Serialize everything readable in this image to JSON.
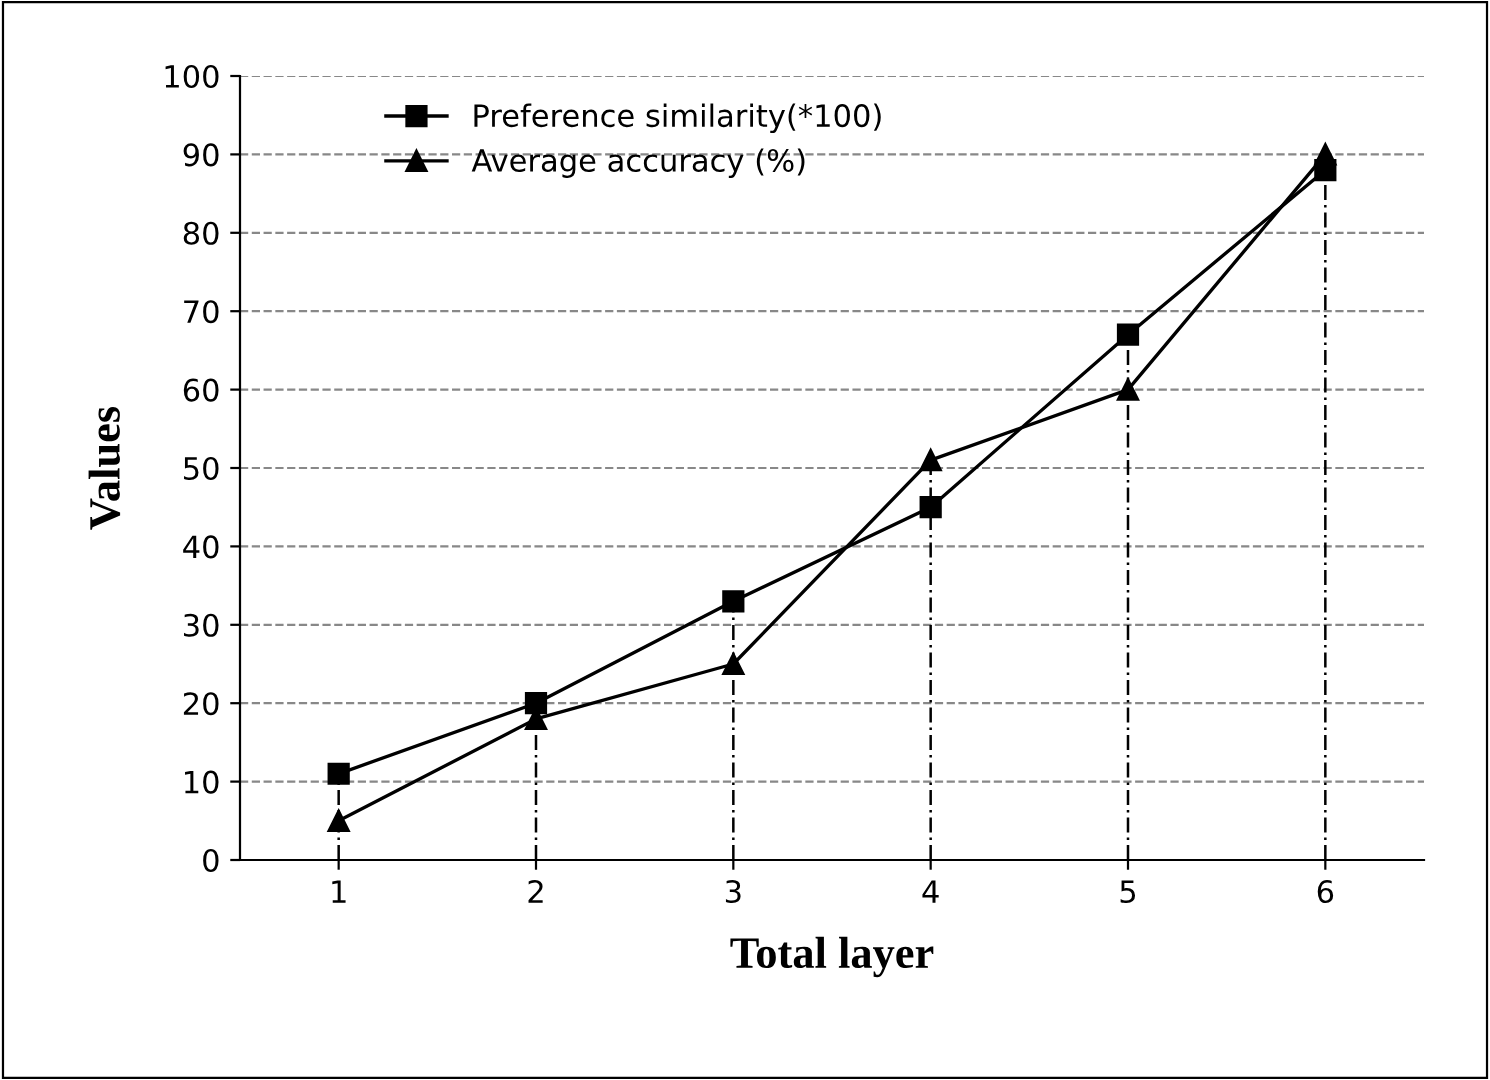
{
  "chart_data": {
    "type": "line",
    "xlabel": "Total layer",
    "ylabel": "Values",
    "categories": [
      "1",
      "2",
      "3",
      "4",
      "5",
      "6"
    ],
    "series": [
      {
        "name": "Preference similarity(*100)",
        "color": "#000000",
        "marker": "square",
        "values": [
          11,
          20,
          33,
          45,
          67,
          88
        ]
      },
      {
        "name": "Average accuracy (%)",
        "color": "#000000",
        "marker": "triangle",
        "values": [
          5,
          18,
          25,
          51,
          60,
          90
        ]
      }
    ],
    "ylim": [
      0,
      100
    ],
    "yticks": [
      0,
      10,
      20,
      30,
      40,
      50,
      60,
      70,
      80,
      90,
      100
    ],
    "grid": "y",
    "legend": "top left",
    "line_style": "solid",
    "ref_lines": [
      {
        "axis": "x",
        "value": "1",
        "color": "#000000",
        "line_style": "dotted"
      },
      {
        "axis": "x",
        "value": "2",
        "color": "#000000",
        "line_style": "dotted"
      },
      {
        "axis": "x",
        "value": "3",
        "color": "#000000",
        "line_style": "dotted"
      },
      {
        "axis": "x",
        "value": "4",
        "color": "#000000",
        "line_style": "dotted"
      },
      {
        "axis": "x",
        "value": "5",
        "color": "#000000",
        "line_style": "dotted"
      },
      {
        "axis": "x",
        "value": "6",
        "color": "#000000",
        "line_style": "dotted"
      }
    ]
  }
}
